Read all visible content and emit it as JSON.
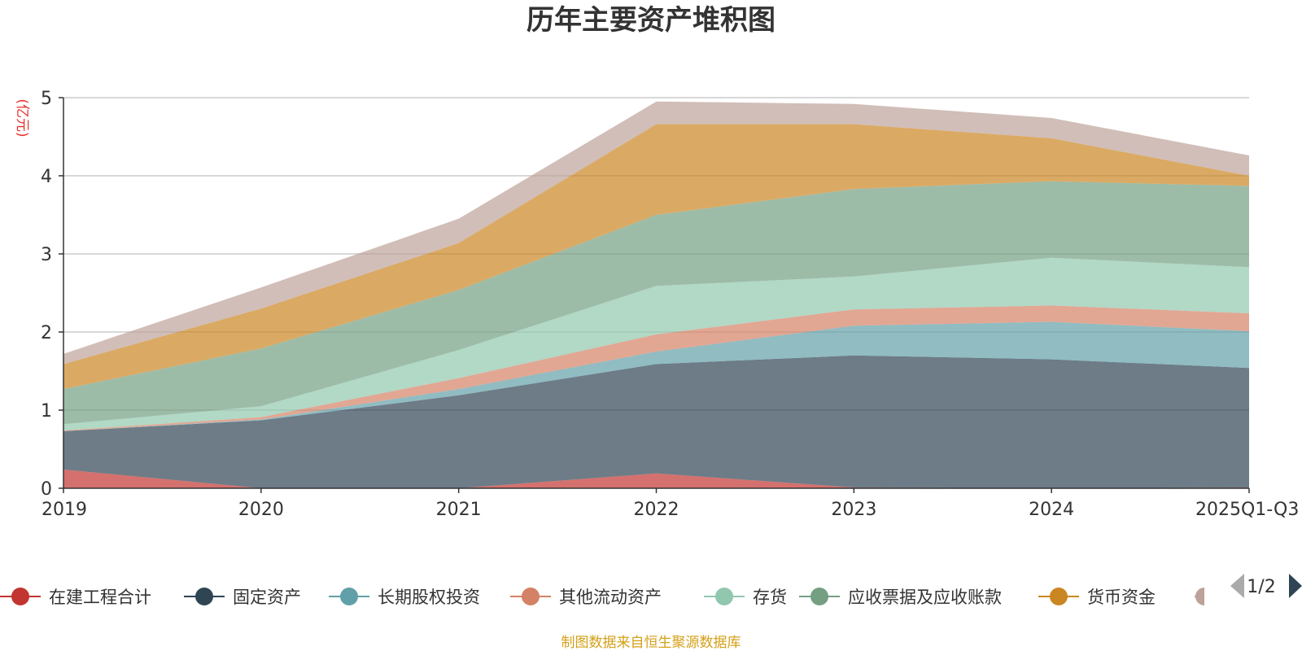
{
  "chart_data": {
    "type": "area",
    "stacked": true,
    "title": "历年主要资产堆积图",
    "unit_label": "(亿元)",
    "categories": [
      "2019",
      "2020",
      "2021",
      "2022",
      "2023",
      "2024",
      "2025Q1-Q3"
    ],
    "ylim": [
      0,
      5
    ],
    "yticks": [
      0,
      1,
      2,
      3,
      4,
      5
    ],
    "grid": true,
    "series": [
      {
        "name": "在建工程合计",
        "color": "#c23531",
        "values": [
          0.24,
          0.0,
          0.0,
          0.19,
          0.01,
          0.0,
          0.01
        ]
      },
      {
        "name": "固定资产",
        "color": "#2f4554",
        "values": [
          0.49,
          0.87,
          1.19,
          1.4,
          1.69,
          1.65,
          1.53
        ]
      },
      {
        "name": "长期股权投资",
        "color": "#61a0a8",
        "values": [
          0.0,
          0.01,
          0.08,
          0.16,
          0.38,
          0.48,
          0.47
        ]
      },
      {
        "name": "其他流动资产",
        "color": "#d48265",
        "values": [
          0.01,
          0.03,
          0.14,
          0.22,
          0.21,
          0.21,
          0.23
        ]
      },
      {
        "name": "存货",
        "color": "#91c7ae",
        "values": [
          0.08,
          0.14,
          0.36,
          0.62,
          0.42,
          0.61,
          0.59
        ]
      },
      {
        "name": "应收票据及应收账款",
        "color": "#749f83",
        "values": [
          0.45,
          0.74,
          0.77,
          0.91,
          1.12,
          0.98,
          1.04
        ]
      },
      {
        "name": "货币资金",
        "color": "#ca8622",
        "values": [
          0.32,
          0.51,
          0.6,
          1.16,
          0.83,
          0.55,
          0.13
        ]
      },
      {
        "name": "",
        "color": "#bda29a",
        "values": [
          0.13,
          0.27,
          0.31,
          0.29,
          0.26,
          0.26,
          0.26
        ]
      }
    ],
    "legend": {
      "position": "bottom",
      "page": "1/2"
    },
    "source": "制图数据来自恒生聚源数据库"
  }
}
